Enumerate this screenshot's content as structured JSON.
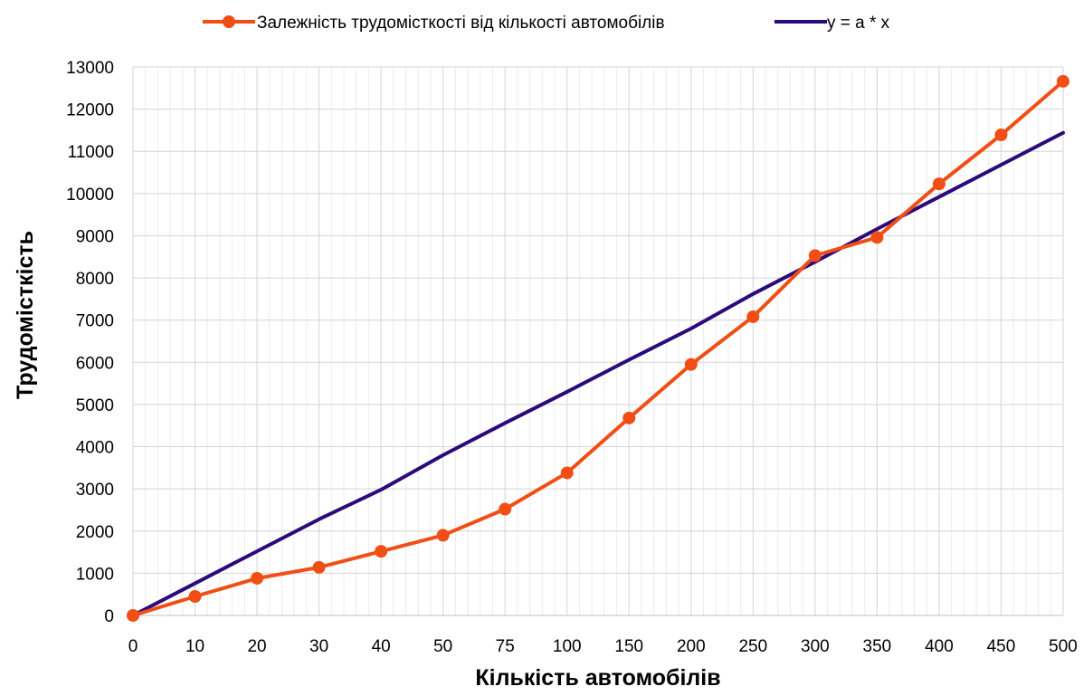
{
  "chart_data": {
    "type": "line",
    "title": "",
    "xlabel": "Кількість автомобілів",
    "ylabel": "Трудомісткість",
    "categories": [
      "0",
      "10",
      "20",
      "30",
      "40",
      "50",
      "75",
      "100",
      "150",
      "200",
      "250",
      "300",
      "350",
      "400",
      "450",
      "500"
    ],
    "ylim": [
      0,
      13000
    ],
    "yticks": [
      0,
      1000,
      2000,
      3000,
      4000,
      5000,
      6000,
      7000,
      8000,
      9000,
      10000,
      11000,
      12000,
      13000
    ],
    "grid": true,
    "legend_position": "top",
    "series": [
      {
        "name": "Залежність трудомісткості від кількості автомобілів",
        "color": "#f04e14",
        "marker": "circle",
        "values": [
          0,
          450,
          880,
          1140,
          1520,
          1900,
          2520,
          3380,
          4680,
          5950,
          7080,
          8530,
          8960,
          10230,
          11390,
          12660
        ]
      },
      {
        "name": "y = a * x",
        "color": "#2b0a7a",
        "marker": "none",
        "values": [
          0,
          760,
          1520,
          2280,
          2980,
          3800,
          4560,
          5300,
          6060,
          6800,
          7620,
          8380,
          9160,
          9920,
          10680,
          11440
        ]
      }
    ]
  }
}
